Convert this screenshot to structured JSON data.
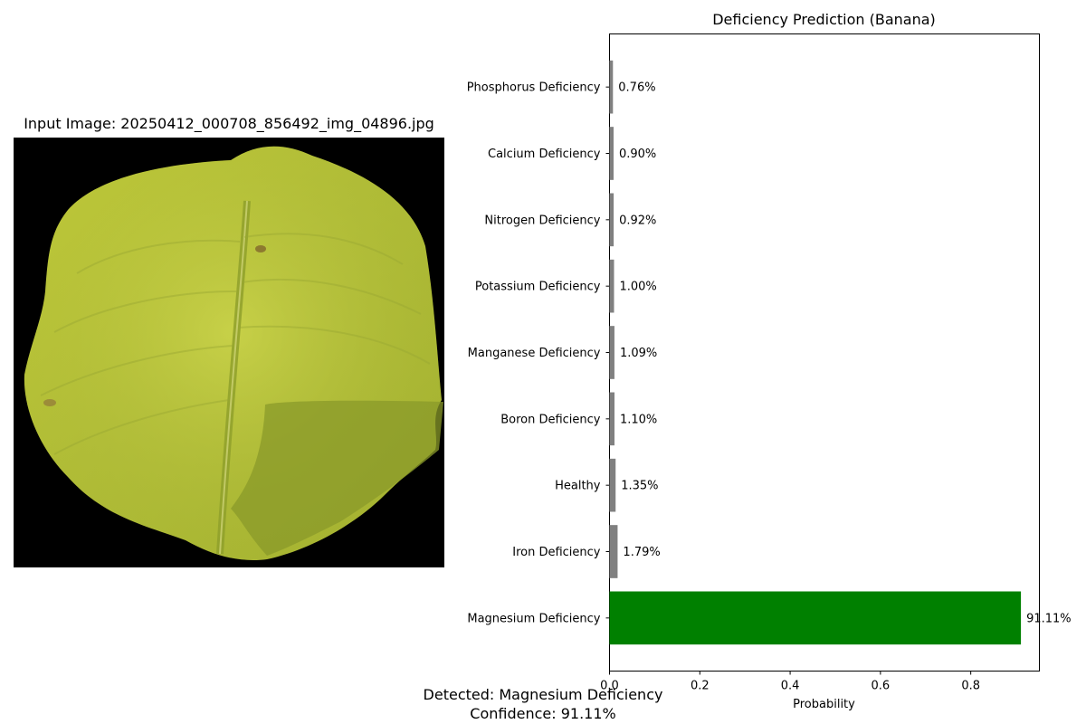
{
  "image_panel": {
    "title": "Input Image: 20250412_000708_856492_img_04896.jpg",
    "background": "#000000"
  },
  "summary": {
    "detected": "Detected: Magnesium Deficiency",
    "confidence": "Confidence: 91.11%"
  },
  "chart_data": {
    "type": "bar",
    "orientation": "horizontal",
    "title": "Deficiency Prediction (Banana)",
    "xlabel": "Probability",
    "ylabel": "",
    "xlim": [
      0,
      0.952
    ],
    "xticks": [
      0.0,
      0.2,
      0.4,
      0.6,
      0.8
    ],
    "xtick_labels": [
      "0.0",
      "0.2",
      "0.4",
      "0.6",
      "0.8"
    ],
    "grid": false,
    "categories": [
      "Magnesium Deficiency",
      "Iron Deficiency",
      "Healthy",
      "Boron Deficiency",
      "Manganese Deficiency",
      "Potassium Deficiency",
      "Nitrogen Deficiency",
      "Calcium Deficiency",
      "Phosphorus Deficiency"
    ],
    "values": [
      0.9111,
      0.0179,
      0.0135,
      0.011,
      0.0109,
      0.01,
      0.0092,
      0.009,
      0.0076
    ],
    "value_labels": [
      "91.11%",
      "1.79%",
      "1.35%",
      "1.10%",
      "1.09%",
      "1.00%",
      "0.92%",
      "0.90%",
      "0.76%"
    ],
    "colors": [
      "#008000",
      "#808080",
      "#808080",
      "#808080",
      "#808080",
      "#808080",
      "#808080",
      "#808080",
      "#808080"
    ]
  }
}
